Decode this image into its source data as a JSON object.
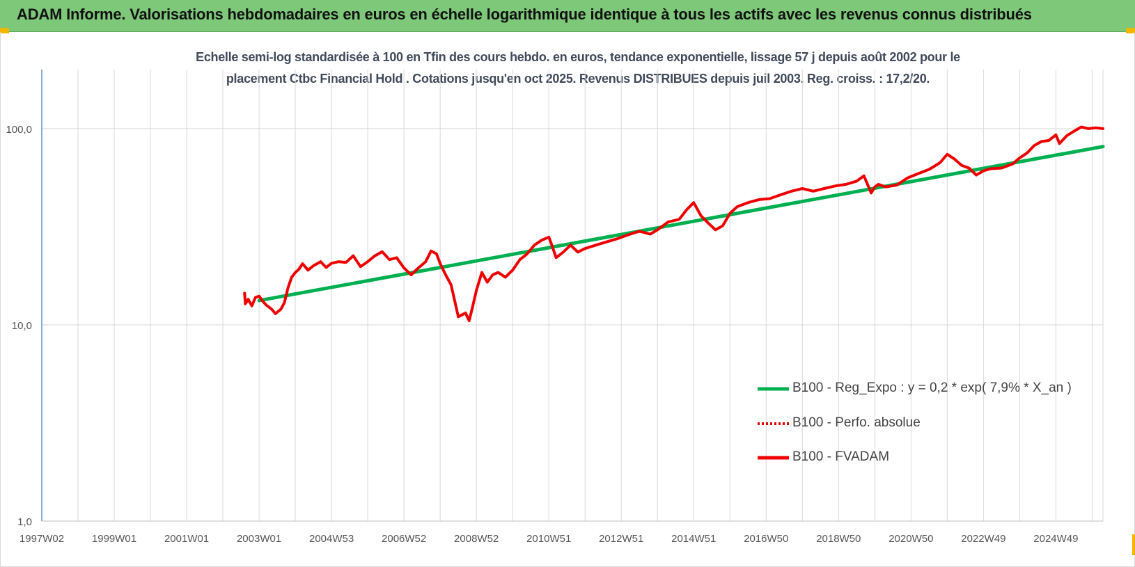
{
  "page": {
    "banner_title": "ADAM Informe. Valorisations hebdomadaires en euros en échelle logarithmique identique à tous les actifs avec les revenus connus distribués"
  },
  "chart_data": {
    "type": "line",
    "title_lines": [
      "Echelle semi-log standardisée à 100 en Tfin des cours hebdo. en euros, tendance exponentielle, lissage 57 j depuis août 2002 pour le",
      "placement Ctbc Financial Hold . Cotations jusqu'en oct 2025.  Revenus DISTRIBUES depuis juil 2003. Reg. croiss. : 17,2/20."
    ],
    "y_scale": "log",
    "ylim": [
      1,
      200
    ],
    "y_ticks": [
      1,
      10,
      100
    ],
    "y_tick_labels": [
      "1,0",
      "10,0",
      "100,0"
    ],
    "xlim": [
      1997.0,
      2026.3
    ],
    "x_tick_years": [
      1997.0,
      1999.0,
      2001.0,
      2003.0,
      2005.0,
      2007.0,
      2009.0,
      2011.0,
      2013.0,
      2015.0,
      2017.0,
      2019.0,
      2021.0,
      2023.0,
      2025.0
    ],
    "x_tick_labels": [
      "1997W02",
      "1999W01",
      "2001W01",
      "2003W01",
      "2004W53",
      "2006W52",
      "2008W52",
      "2010W51",
      "2012W51",
      "2014W51",
      "2016W50",
      "2018W50",
      "2020W50",
      "2022W49",
      "2024W49"
    ],
    "grid": true,
    "legend_position": "right",
    "colors": {
      "reg": "#00b050",
      "perfo": "#e00000",
      "fvadam": "#ee0000",
      "grid": "#d9d9d9",
      "axis": "#4472c4"
    },
    "series": [
      {
        "name": "B100 - Reg_Expo : y = 0,2 * exp( 7,9% *  X_an )",
        "style": "solid-thick",
        "color": "#00b050",
        "x": [
          2003.0,
          2026.3
        ],
        "y": [
          13.3,
          81.0
        ]
      },
      {
        "name": "B100 - Perfo. absolue",
        "style": "dotted",
        "color": "#e00000",
        "x": [],
        "y": []
      },
      {
        "name": "B100 - FVADAM",
        "style": "solid-thick",
        "color": "#ee0000",
        "x": [
          2002.6,
          2002.62,
          2002.7,
          2002.8,
          2002.9,
          2003.0,
          2003.1,
          2003.2,
          2003.35,
          2003.45,
          2003.6,
          2003.7,
          2003.8,
          2003.9,
          2004.0,
          2004.1,
          2004.2,
          2004.35,
          2004.5,
          2004.7,
          2004.85,
          2005.0,
          2005.2,
          2005.4,
          2005.6,
          2005.8,
          2006.0,
          2006.2,
          2006.4,
          2006.6,
          2006.8,
          2007.0,
          2007.2,
          2007.4,
          2007.6,
          2007.75,
          2007.9,
          2008.0,
          2008.15,
          2008.3,
          2008.5,
          2008.7,
          2008.8,
          2008.9,
          2009.0,
          2009.15,
          2009.3,
          2009.45,
          2009.6,
          2009.8,
          2010.0,
          2010.2,
          2010.4,
          2010.6,
          2010.8,
          2011.0,
          2011.1,
          2011.2,
          2011.4,
          2011.6,
          2011.8,
          2012.0,
          2012.3,
          2012.6,
          2012.9,
          2013.2,
          2013.5,
          2013.8,
          2014.0,
          2014.3,
          2014.6,
          2014.8,
          2015.0,
          2015.2,
          2015.4,
          2015.6,
          2015.8,
          2016.0,
          2016.2,
          2016.5,
          2016.8,
          2017.1,
          2017.4,
          2017.7,
          2018.0,
          2018.3,
          2018.6,
          2018.9,
          2019.2,
          2019.5,
          2019.7,
          2019.9,
          2020.0,
          2020.1,
          2020.3,
          2020.6,
          2020.9,
          2021.2,
          2021.5,
          2021.8,
          2022.0,
          2022.2,
          2022.4,
          2022.6,
          2022.8,
          2023.0,
          2023.2,
          2023.5,
          2023.8,
          2024.0,
          2024.2,
          2024.4,
          2024.6,
          2024.8,
          2025.0,
          2025.1,
          2025.3,
          2025.5,
          2025.7,
          2025.9,
          2026.1,
          2026.3
        ],
        "y": [
          14.5,
          12.8,
          13.5,
          12.5,
          13.8,
          14.0,
          13.2,
          12.6,
          12.0,
          11.4,
          12.0,
          13.0,
          15.5,
          17.5,
          18.5,
          19.2,
          20.5,
          19.0,
          20.0,
          21.0,
          19.6,
          20.6,
          21.0,
          20.8,
          22.5,
          19.8,
          21.0,
          22.5,
          23.6,
          21.5,
          22.0,
          19.5,
          18.0,
          19.5,
          21.0,
          23.8,
          23.0,
          20.5,
          18.0,
          16.0,
          11.0,
          11.5,
          10.5,
          12.5,
          15.0,
          18.5,
          16.5,
          18.0,
          18.5,
          17.5,
          19.0,
          21.5,
          23.0,
          25.5,
          27.0,
          28.0,
          25.0,
          22.0,
          23.5,
          25.5,
          23.5,
          24.5,
          25.5,
          26.5,
          27.5,
          28.8,
          30.0,
          29.0,
          30.5,
          33.5,
          34.5,
          38.5,
          42.0,
          36.0,
          33.0,
          30.5,
          32.0,
          37.0,
          40.0,
          42.0,
          43.5,
          44.0,
          46.0,
          48.0,
          49.5,
          48.0,
          49.5,
          51.0,
          52.0,
          54.0,
          57.5,
          47.0,
          50.5,
          52.0,
          50.5,
          51.5,
          56.0,
          59.0,
          62.0,
          67.0,
          74.0,
          70.0,
          65.0,
          63.0,
          58.0,
          61.0,
          62.5,
          63.0,
          66.0,
          71.0,
          75.0,
          82.0,
          86.0,
          87.0,
          93.0,
          84.0,
          92.0,
          97.0,
          102.0,
          100.0,
          101.0,
          100.0
        ]
      }
    ]
  }
}
